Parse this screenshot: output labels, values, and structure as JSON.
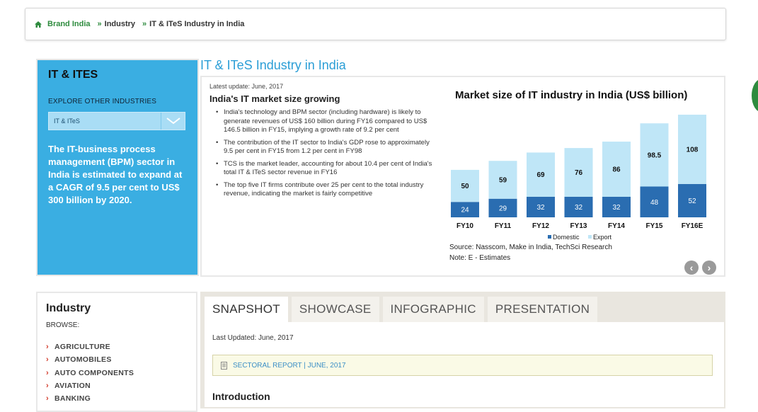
{
  "breadcrumb": {
    "home": "Brand India",
    "sep": "»",
    "industry": "Industry",
    "current": "IT & ITeS Industry in India"
  },
  "side": {
    "title": "IT & ITES",
    "explore_label": "EXPLORE OTHER INDUSTRIES",
    "select_value": "IT & ITeS",
    "description": "The IT-business process management (BPM) sector in India is estimated to expand at a CAGR of 9.5 per cent to US$ 300 billion by 2020."
  },
  "main": {
    "title": "IT & ITeS Industry in India",
    "latest_update": "Latest update: June, 2017",
    "subtitle": "India's IT market size growing",
    "bullets": [
      "India's technology and BPM sector (including hardware) is likely to generate revenues of US$ 160 billion during FY16 compared to US$ 146.5 billion in FY15, implying a growth rate of 9.2 per cent",
      "The contribution of the IT sector to India's GDP rose to approximately 9.5 per cent in FY15 from 1.2 per cent in FY98",
      "TCS is the market leader, accounting for about 10.4 per cent of India's total IT & ITeS sector revenue in FY16",
      "The top five IT firms contribute over 25 per cent to the total industry revenue, indicating the market is fairly competitive"
    ],
    "source": "Source: Nasscom, Make in India, TechSci Research",
    "note": "Note: E - Estimates",
    "prev": "‹",
    "next": "›"
  },
  "chart_data": {
    "type": "bar",
    "stacked": true,
    "title": "Market size of IT industry in India (US$ billion)",
    "categories": [
      "FY10",
      "FY11",
      "FY12",
      "FY13",
      "FY14",
      "FY15",
      "FY16E"
    ],
    "series": [
      {
        "name": "Domestic",
        "values": [
          24,
          29,
          32,
          32,
          32,
          48,
          52
        ],
        "color": "#2a6db1"
      },
      {
        "name": "Export",
        "values": [
          50,
          59,
          69,
          76,
          86,
          98.5,
          108
        ],
        "color": "#bfe6f7"
      }
    ],
    "labels": {
      "domestic": [
        "24",
        "29",
        "32",
        "32",
        "32",
        "48",
        "52"
      ],
      "export": [
        "50",
        "59",
        "69",
        "76",
        "86",
        "98.5",
        "108"
      ]
    },
    "legend": [
      "Domestic",
      "Export"
    ],
    "legend_position": "bottom",
    "grid": false,
    "ylim": [
      0,
      160
    ]
  },
  "industry": {
    "title": "Industry",
    "browse": "BROWSE:",
    "items": [
      "AGRICULTURE",
      "AUTOMOBILES",
      "AUTO COMPONENTS",
      "AVIATION",
      "BANKING"
    ]
  },
  "tabs": {
    "items": [
      "SNAPSHOT",
      "SHOWCASE",
      "INFOGRAPHIC",
      "PRESENTATION"
    ],
    "last_updated": "Last Updated: June, 2017",
    "report_label": "SECTORAL REPORT | JUNE, 2017",
    "intro": "Introduction"
  }
}
